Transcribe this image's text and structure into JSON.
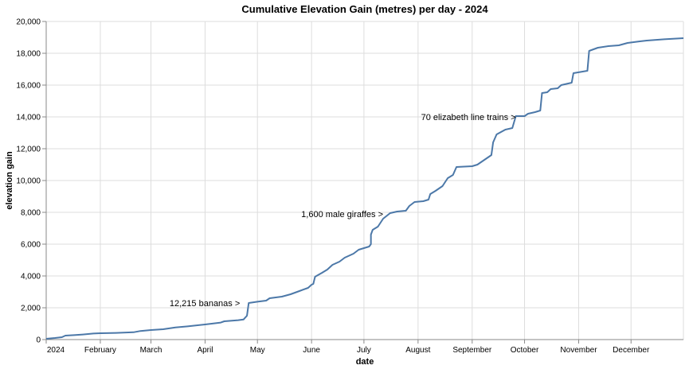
{
  "chart_data": {
    "type": "line",
    "title": "Cumulative Elevation Gain (metres) per day - 2024",
    "xlabel": "date",
    "ylabel": "elevation gain",
    "xlim": [
      "2024-01-01",
      "2024-12-31"
    ],
    "ylim": [
      0,
      20000
    ],
    "grid": true,
    "line_color": "#4c78a8",
    "x_ticks": [
      {
        "date": "2024-01-01",
        "label": "2024"
      },
      {
        "date": "2024-02-01",
        "label": "February"
      },
      {
        "date": "2024-03-01",
        "label": "March"
      },
      {
        "date": "2024-04-01",
        "label": "April"
      },
      {
        "date": "2024-05-01",
        "label": "May"
      },
      {
        "date": "2024-06-01",
        "label": "June"
      },
      {
        "date": "2024-07-01",
        "label": "July"
      },
      {
        "date": "2024-08-01",
        "label": "August"
      },
      {
        "date": "2024-09-01",
        "label": "September"
      },
      {
        "date": "2024-10-01",
        "label": "October"
      },
      {
        "date": "2024-11-01",
        "label": "November"
      },
      {
        "date": "2024-12-01",
        "label": "December"
      }
    ],
    "y_ticks": [
      {
        "value": 0,
        "label": "0"
      },
      {
        "value": 2000,
        "label": "2,000"
      },
      {
        "value": 4000,
        "label": "4,000"
      },
      {
        "value": 6000,
        "label": "6,000"
      },
      {
        "value": 8000,
        "label": "8,000"
      },
      {
        "value": 10000,
        "label": "10,000"
      },
      {
        "value": 12000,
        "label": "12,000"
      },
      {
        "value": 14000,
        "label": "14,000"
      },
      {
        "value": 16000,
        "label": "16,000"
      },
      {
        "value": 18000,
        "label": "18,000"
      },
      {
        "value": 20000,
        "label": "20,000"
      }
    ],
    "annotations": [
      {
        "text": "12,215 bananas >",
        "date": "2024-04-21",
        "y": 2300
      },
      {
        "text": "1,600 male giraffes >",
        "date": "2024-07-12",
        "y": 7900
      },
      {
        "text": "70 elizabeth line trains >",
        "date": "2024-09-26",
        "y": 14000
      }
    ],
    "series": [
      {
        "points": [
          [
            "2024-01-01",
            50
          ],
          [
            "2024-01-06",
            100
          ],
          [
            "2024-01-10",
            150
          ],
          [
            "2024-01-12",
            250
          ],
          [
            "2024-01-17",
            280
          ],
          [
            "2024-01-22",
            320
          ],
          [
            "2024-01-28",
            380
          ],
          [
            "2024-02-01",
            400
          ],
          [
            "2024-02-10",
            420
          ],
          [
            "2024-02-20",
            460
          ],
          [
            "2024-02-24",
            540
          ],
          [
            "2024-03-01",
            600
          ],
          [
            "2024-03-08",
            650
          ],
          [
            "2024-03-15",
            760
          ],
          [
            "2024-03-22",
            830
          ],
          [
            "2024-04-01",
            950
          ],
          [
            "2024-04-10",
            1070
          ],
          [
            "2024-04-12",
            1150
          ],
          [
            "2024-04-20",
            1220
          ],
          [
            "2024-04-23",
            1260
          ],
          [
            "2024-04-25",
            1500
          ],
          [
            "2024-04-26",
            2300
          ],
          [
            "2024-05-01",
            2380
          ],
          [
            "2024-05-06",
            2450
          ],
          [
            "2024-05-08",
            2600
          ],
          [
            "2024-05-15",
            2700
          ],
          [
            "2024-05-20",
            2850
          ],
          [
            "2024-05-25",
            3050
          ],
          [
            "2024-05-30",
            3250
          ],
          [
            "2024-06-01",
            3450
          ],
          [
            "2024-06-02",
            3500
          ],
          [
            "2024-06-03",
            3950
          ],
          [
            "2024-06-07",
            4200
          ],
          [
            "2024-06-10",
            4400
          ],
          [
            "2024-06-13",
            4700
          ],
          [
            "2024-06-17",
            4900
          ],
          [
            "2024-06-20",
            5150
          ],
          [
            "2024-06-25",
            5400
          ],
          [
            "2024-06-28",
            5650
          ],
          [
            "2024-07-04",
            5850
          ],
          [
            "2024-07-05",
            6000
          ],
          [
            "2024-07-05",
            6600
          ],
          [
            "2024-07-06",
            6900
          ],
          [
            "2024-07-09",
            7100
          ],
          [
            "2024-07-12",
            7600
          ],
          [
            "2024-07-16",
            7950
          ],
          [
            "2024-07-20",
            8050
          ],
          [
            "2024-07-25",
            8100
          ],
          [
            "2024-07-27",
            8400
          ],
          [
            "2024-07-30",
            8650
          ],
          [
            "2024-08-04",
            8700
          ],
          [
            "2024-08-07",
            8800
          ],
          [
            "2024-08-08",
            9150
          ],
          [
            "2024-08-11",
            9350
          ],
          [
            "2024-08-15",
            9650
          ],
          [
            "2024-08-18",
            10150
          ],
          [
            "2024-08-21",
            10350
          ],
          [
            "2024-08-23",
            10850
          ],
          [
            "2024-09-01",
            10900
          ],
          [
            "2024-09-04",
            11000
          ],
          [
            "2024-09-08",
            11300
          ],
          [
            "2024-09-10",
            11450
          ],
          [
            "2024-09-12",
            11600
          ],
          [
            "2024-09-13",
            12400
          ],
          [
            "2024-09-15",
            12900
          ],
          [
            "2024-09-20",
            13200
          ],
          [
            "2024-09-24",
            13300
          ],
          [
            "2024-09-26",
            14050
          ],
          [
            "2024-10-01",
            14050
          ],
          [
            "2024-10-03",
            14200
          ],
          [
            "2024-10-07",
            14300
          ],
          [
            "2024-10-10",
            14400
          ],
          [
            "2024-10-11",
            15500
          ],
          [
            "2024-10-14",
            15550
          ],
          [
            "2024-10-16",
            15750
          ],
          [
            "2024-10-20",
            15800
          ],
          [
            "2024-10-22",
            16000
          ],
          [
            "2024-10-28",
            16150
          ],
          [
            "2024-10-29",
            16750
          ],
          [
            "2024-11-06",
            16900
          ],
          [
            "2024-11-07",
            18150
          ],
          [
            "2024-11-12",
            18350
          ],
          [
            "2024-11-18",
            18450
          ],
          [
            "2024-11-24",
            18500
          ],
          [
            "2024-11-29",
            18650
          ],
          [
            "2024-12-06",
            18750
          ],
          [
            "2024-12-10",
            18800
          ],
          [
            "2024-12-20",
            18880
          ],
          [
            "2024-12-31",
            18950
          ]
        ]
      }
    ]
  }
}
